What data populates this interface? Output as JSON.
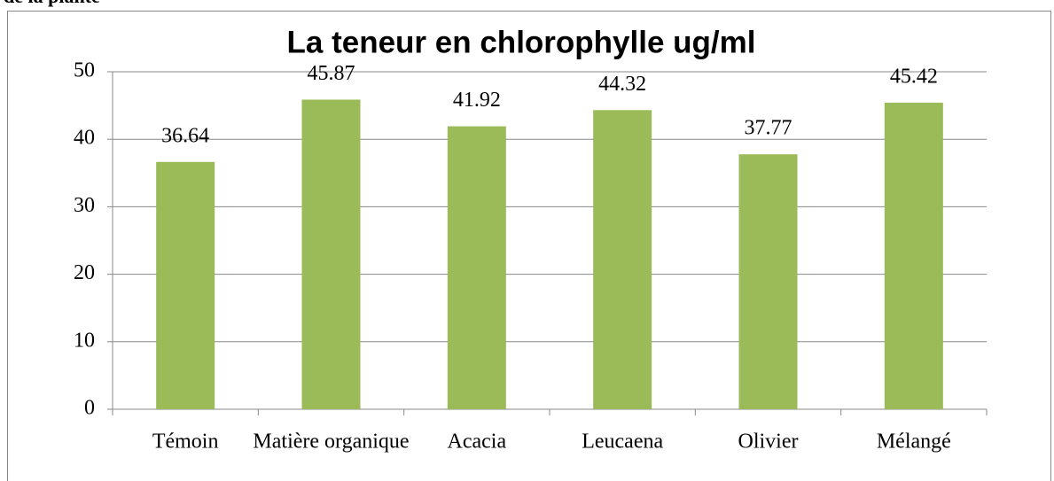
{
  "caption": "de la plante",
  "chart_data": {
    "type": "bar",
    "title": "La teneur en chlorophylle ug/ml",
    "categories": [
      "Témoin",
      "Matière organique",
      "Acacia",
      "Leucaena",
      "Olivier",
      "Mélangé"
    ],
    "values": [
      36.64,
      45.87,
      41.92,
      44.32,
      37.77,
      45.42
    ],
    "value_labels": [
      "36.64",
      "45.87",
      "41.92",
      "44.32",
      "37.77",
      "45.42"
    ],
    "color": "#9bbb59",
    "ylim": [
      0,
      50
    ],
    "yticks": [
      0,
      10,
      20,
      30,
      40,
      50
    ],
    "grid": true
  }
}
